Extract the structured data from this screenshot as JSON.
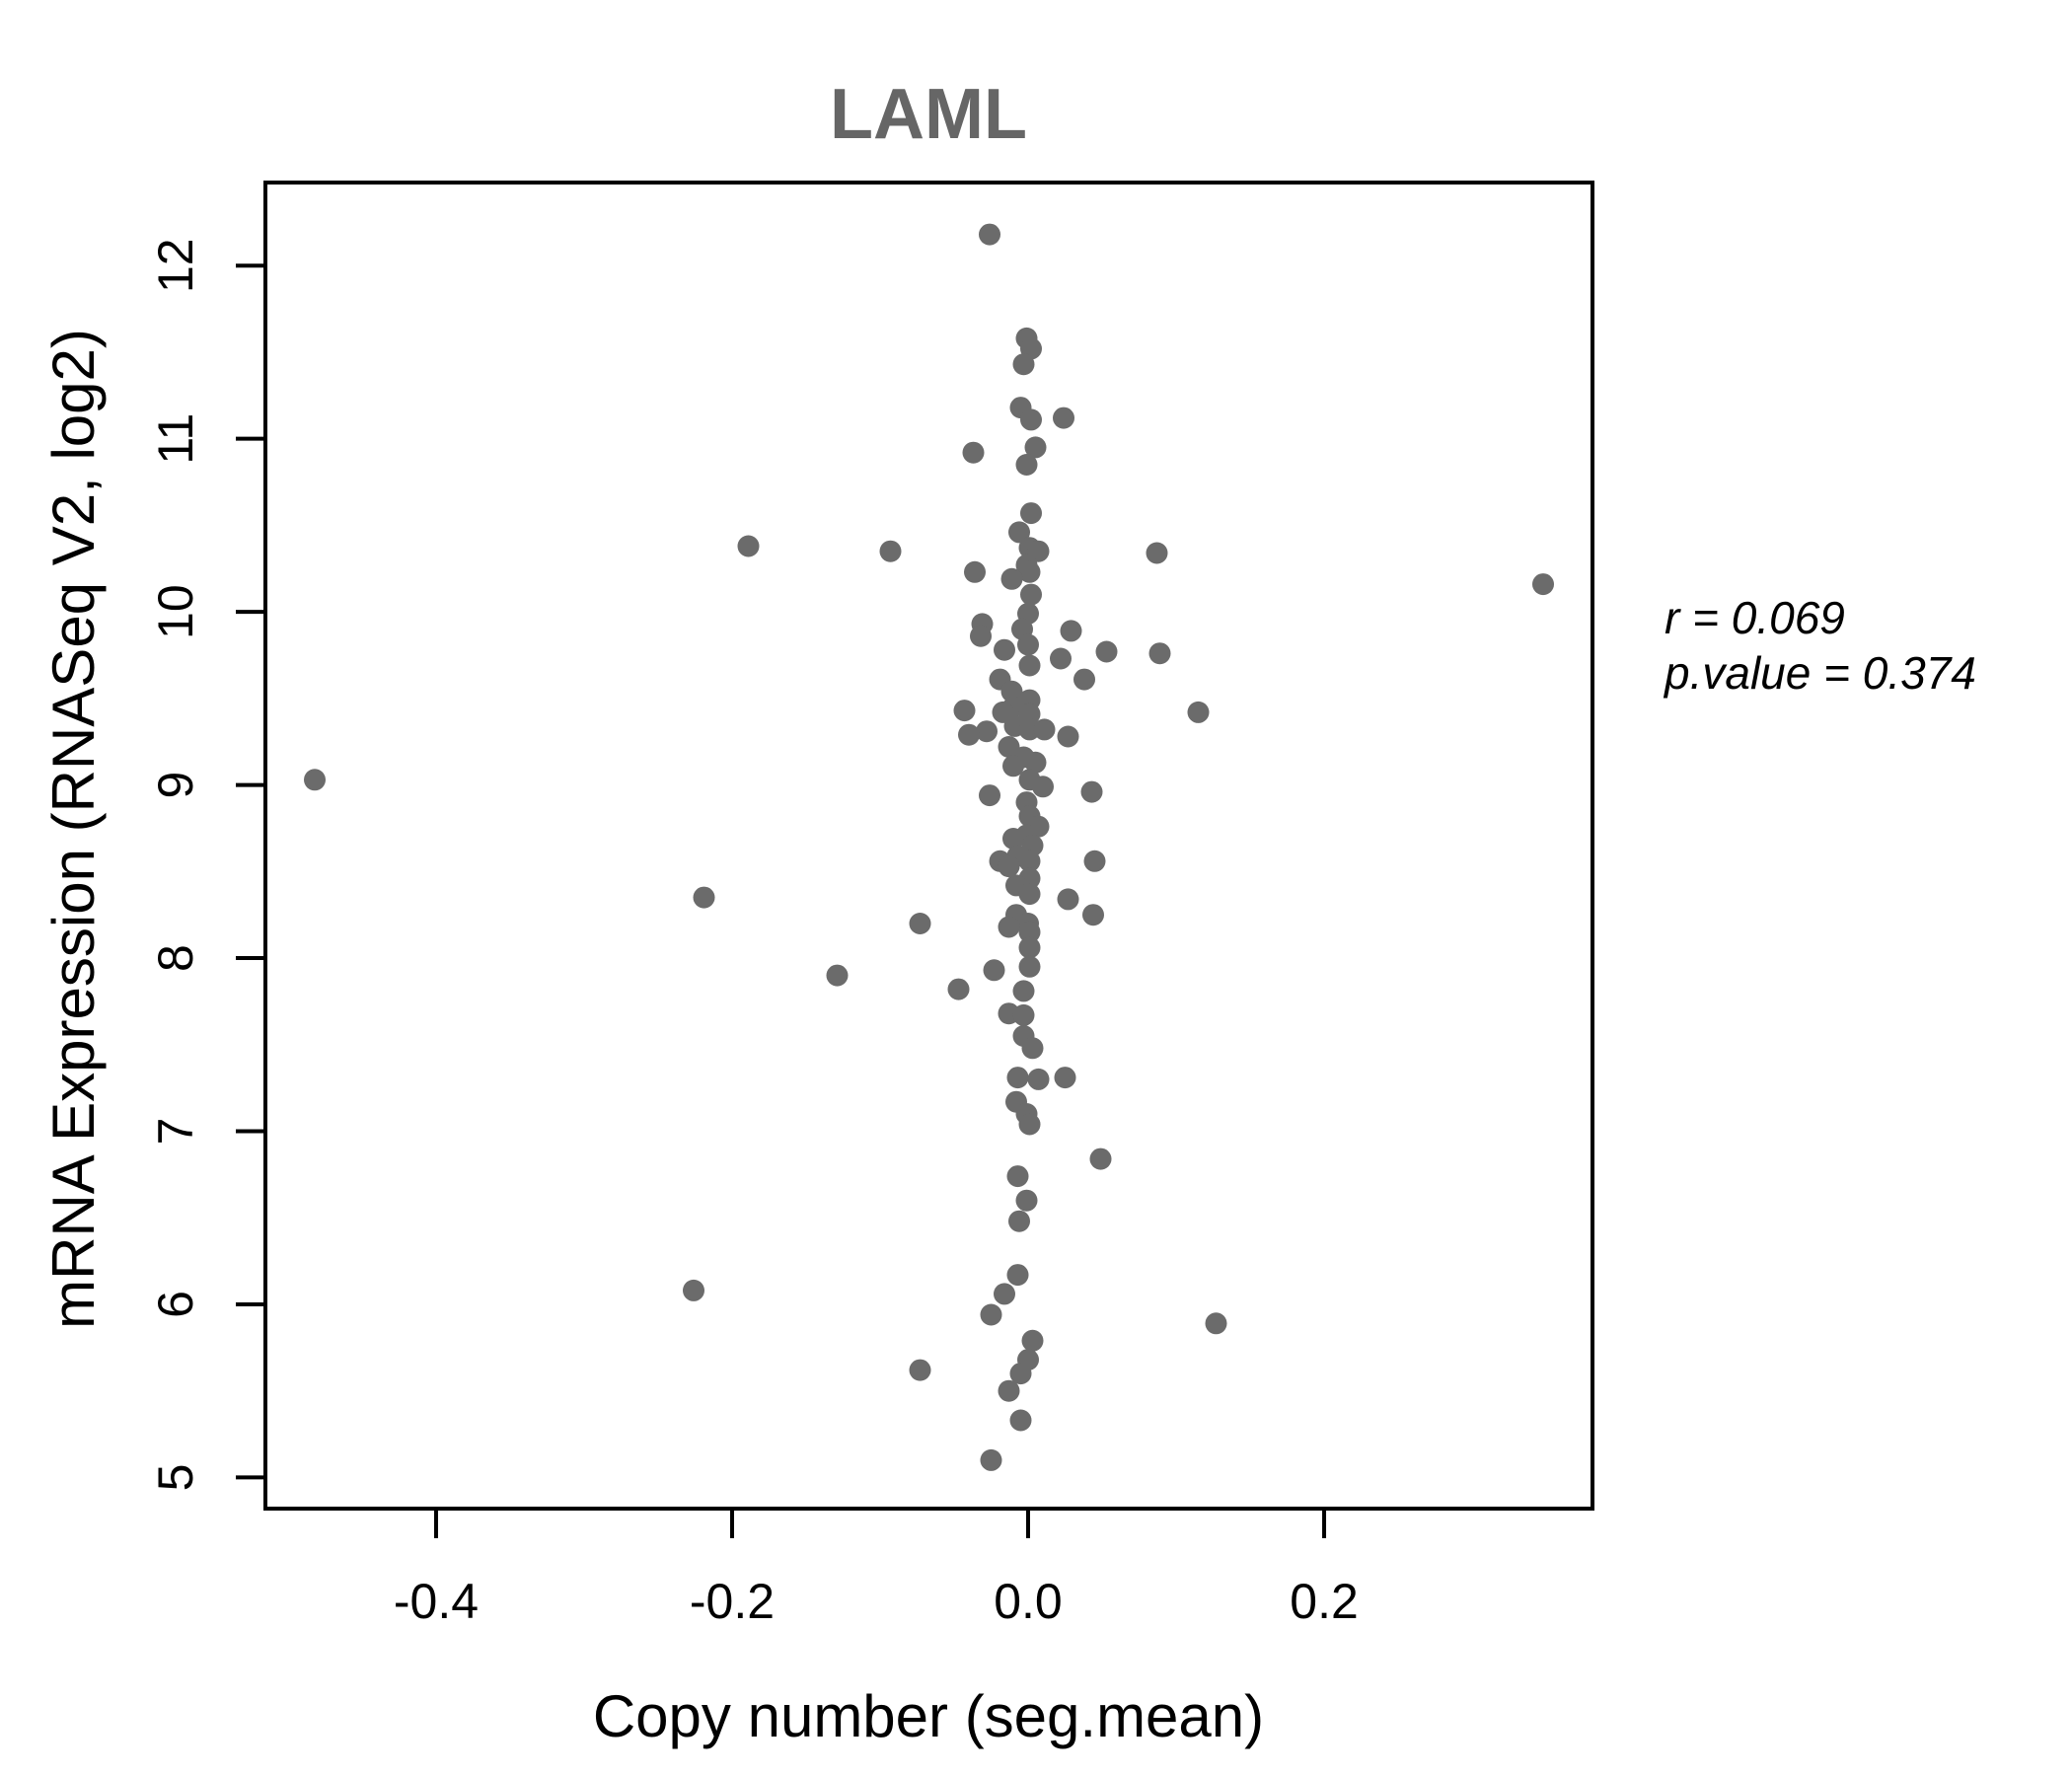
{
  "chart_data": {
    "type": "scatter",
    "title": "LAML",
    "xlabel": "Copy number (seg.mean)",
    "ylabel": "mRNA Expression (RNASeq V2, log2)",
    "xlim": [
      -0.5153,
      0.3813
    ],
    "ylim": [
      4.82,
      12.48
    ],
    "x_tick_values": [
      -0.4,
      -0.2,
      0.0,
      0.2
    ],
    "x_tick_labels": [
      "-0.4",
      "-0.2",
      "0.0",
      "0.2"
    ],
    "y_tick_values": [
      5,
      6,
      7,
      8,
      9,
      10,
      11,
      12
    ],
    "y_tick_labels": [
      "5",
      "6",
      "7",
      "8",
      "9",
      "10",
      "11",
      "12"
    ],
    "grid": false,
    "legend": "none",
    "stats": {
      "r": 0.069,
      "p_value": 0.374
    },
    "annotation": {
      "line1": "r = 0.069",
      "line2": "p.value = 0.374"
    },
    "colors": {
      "point": "#6b6b6b",
      "title": "#666666",
      "axis": "#000000",
      "background": "#ffffff"
    },
    "points": [
      [
        -0.026,
        12.18
      ],
      [
        -0.001,
        11.58
      ],
      [
        0.002,
        11.52
      ],
      [
        -0.003,
        11.43
      ],
      [
        -0.005,
        11.18
      ],
      [
        0.024,
        11.12
      ],
      [
        0.002,
        11.11
      ],
      [
        0.005,
        10.95
      ],
      [
        -0.037,
        10.92
      ],
      [
        -0.001,
        10.85
      ],
      [
        0.002,
        10.57
      ],
      [
        -0.006,
        10.46
      ],
      [
        -0.189,
        10.38
      ],
      [
        0.001,
        10.37
      ],
      [
        0.007,
        10.35
      ],
      [
        -0.093,
        10.35
      ],
      [
        0.087,
        10.34
      ],
      [
        -0.001,
        10.27
      ],
      [
        -0.036,
        10.23
      ],
      [
        0.001,
        10.23
      ],
      [
        -0.011,
        10.19
      ],
      [
        0.348,
        10.16
      ],
      [
        0.002,
        10.1
      ],
      [
        0.0,
        9.99
      ],
      [
        -0.031,
        9.93
      ],
      [
        -0.004,
        9.9
      ],
      [
        0.029,
        9.89
      ],
      [
        -0.032,
        9.86
      ],
      [
        0.0,
        9.81
      ],
      [
        -0.016,
        9.78
      ],
      [
        0.053,
        9.77
      ],
      [
        0.089,
        9.76
      ],
      [
        0.022,
        9.73
      ],
      [
        0.001,
        9.69
      ],
      [
        0.038,
        9.61
      ],
      [
        -0.019,
        9.61
      ],
      [
        -0.011,
        9.54
      ],
      [
        0.001,
        9.49
      ],
      [
        -0.01,
        9.45
      ],
      [
        -0.043,
        9.43
      ],
      [
        -0.017,
        9.42
      ],
      [
        0.115,
        9.42
      ],
      [
        0.001,
        9.41
      ],
      [
        -0.009,
        9.34
      ],
      [
        0.001,
        9.32
      ],
      [
        0.011,
        9.32
      ],
      [
        -0.028,
        9.31
      ],
      [
        -0.04,
        9.29
      ],
      [
        0.027,
        9.28
      ],
      [
        -0.013,
        9.22
      ],
      [
        -0.003,
        9.16
      ],
      [
        0.005,
        9.13
      ],
      [
        -0.01,
        9.11
      ],
      [
        0.001,
        9.03
      ],
      [
        -0.482,
        9.03
      ],
      [
        0.01,
        8.99
      ],
      [
        0.043,
        8.96
      ],
      [
        -0.026,
        8.94
      ],
      [
        -0.001,
        8.9
      ],
      [
        0.001,
        8.82
      ],
      [
        0.007,
        8.76
      ],
      [
        -0.001,
        8.71
      ],
      [
        -0.01,
        8.69
      ],
      [
        0.003,
        8.65
      ],
      [
        -0.007,
        8.59
      ],
      [
        0.001,
        8.56
      ],
      [
        -0.019,
        8.56
      ],
      [
        0.045,
        8.56
      ],
      [
        -0.013,
        8.53
      ],
      [
        0.001,
        8.46
      ],
      [
        -0.008,
        8.42
      ],
      [
        0.001,
        8.37
      ],
      [
        -0.219,
        8.35
      ],
      [
        0.027,
        8.34
      ],
      [
        0.044,
        8.25
      ],
      [
        -0.008,
        8.25
      ],
      [
        0.0,
        8.2
      ],
      [
        -0.073,
        8.2
      ],
      [
        -0.013,
        8.18
      ],
      [
        0.001,
        8.15
      ],
      [
        0.001,
        8.06
      ],
      [
        0.001,
        7.95
      ],
      [
        -0.023,
        7.93
      ],
      [
        -0.129,
        7.9
      ],
      [
        -0.047,
        7.82
      ],
      [
        -0.003,
        7.81
      ],
      [
        -0.013,
        7.68
      ],
      [
        -0.003,
        7.67
      ],
      [
        -0.003,
        7.55
      ],
      [
        0.003,
        7.48
      ],
      [
        -0.007,
        7.31
      ],
      [
        0.025,
        7.31
      ],
      [
        0.007,
        7.3
      ],
      [
        -0.008,
        7.17
      ],
      [
        -0.001,
        7.1
      ],
      [
        0.001,
        7.04
      ],
      [
        0.049,
        6.84
      ],
      [
        -0.007,
        6.74
      ],
      [
        -0.001,
        6.6
      ],
      [
        -0.006,
        6.48
      ],
      [
        -0.007,
        6.17
      ],
      [
        -0.226,
        6.08
      ],
      [
        -0.016,
        6.06
      ],
      [
        -0.025,
        5.94
      ],
      [
        0.127,
        5.89
      ],
      [
        0.003,
        5.79
      ],
      [
        0.0,
        5.68
      ],
      [
        -0.073,
        5.62
      ],
      [
        -0.005,
        5.6
      ],
      [
        -0.013,
        5.5
      ],
      [
        -0.005,
        5.33
      ],
      [
        -0.025,
        5.1
      ]
    ]
  }
}
